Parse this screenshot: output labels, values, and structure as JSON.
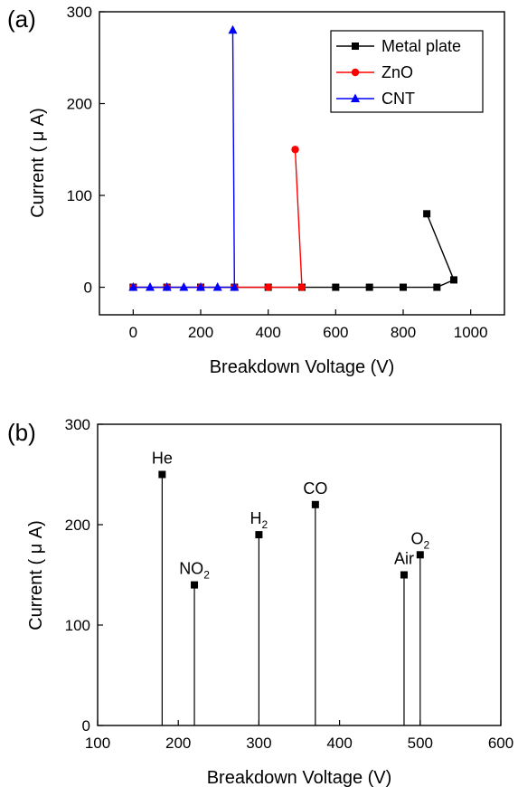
{
  "chart_data": [
    {
      "type": "line",
      "panel_label": "(a)",
      "xlabel": "Breakdown Voltage (V)",
      "ylabel": "Current ( μ A)",
      "xlim": [
        -100,
        1100
      ],
      "ylim": [
        -30,
        300
      ],
      "xticks": [
        0,
        200,
        400,
        600,
        800,
        1000
      ],
      "yticks": [
        0,
        100,
        200,
        300
      ],
      "legend_position": "top-right",
      "series": [
        {
          "name": "Metal plate",
          "color": "#000000",
          "marker": "square",
          "x": [
            0,
            100,
            200,
            300,
            400,
            500,
            600,
            700,
            800,
            900,
            950,
            870
          ],
          "y": [
            0,
            0,
            0,
            0,
            0,
            0,
            0,
            0,
            0,
            0,
            8,
            80
          ]
        },
        {
          "name": "ZnO",
          "color": "#ff0000",
          "marker": "circle",
          "x": [
            0,
            100,
            200,
            300,
            400,
            500,
            480
          ],
          "y": [
            0,
            0,
            0,
            0,
            0,
            0,
            150
          ]
        },
        {
          "name": "CNT",
          "color": "#0000ff",
          "marker": "triangle",
          "x": [
            0,
            50,
            100,
            150,
            200,
            250,
            300,
            295
          ],
          "y": [
            0,
            0,
            0,
            0,
            0,
            0,
            0,
            280
          ]
        }
      ]
    },
    {
      "type": "scatter",
      "panel_label": "(b)",
      "xlabel": "Breakdown Voltage (V)",
      "ylabel": "Current ( μ A)",
      "xlim": [
        100,
        600
      ],
      "ylim": [
        0,
        300
      ],
      "xticks": [
        100,
        200,
        300,
        400,
        500,
        600
      ],
      "yticks": [
        0,
        100,
        200,
        300
      ],
      "points": [
        {
          "label": "He",
          "sub": "",
          "x": 180,
          "y": 250
        },
        {
          "label": "NO",
          "sub": "2",
          "x": 220,
          "y": 140
        },
        {
          "label": "H",
          "sub": "2",
          "x": 300,
          "y": 190
        },
        {
          "label": "CO",
          "sub": "",
          "x": 370,
          "y": 220
        },
        {
          "label": "Air",
          "sub": "",
          "x": 480,
          "y": 150
        },
        {
          "label": "O",
          "sub": "2",
          "x": 500,
          "y": 170
        }
      ]
    }
  ]
}
